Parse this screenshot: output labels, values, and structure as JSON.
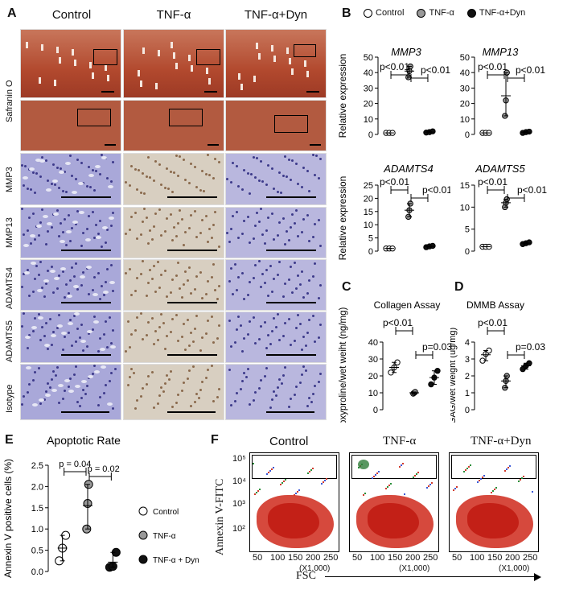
{
  "panels": {
    "A": "A",
    "B": "B",
    "C": "C",
    "D": "D",
    "E": "E",
    "F": "F"
  },
  "histology": {
    "columns": [
      "Control",
      "TNF-α",
      "TNF-α+Dyn"
    ],
    "rows": [
      "Safranin O",
      "MMP3",
      "MMP13",
      "ADAMTS4",
      "ADAMTS5",
      "Isotype"
    ]
  },
  "panelB": {
    "legend": [
      "Control",
      "TNF-α",
      "TNF-α+Dyn"
    ],
    "ylabel": "Relative expression",
    "legend_colors": [
      "#ffffff",
      "#999999",
      "#111111"
    ]
  },
  "chart_data": [
    {
      "id": "mmp3",
      "type": "scatter",
      "title": "MMP3",
      "title_style": "italic",
      "categories": [
        "Control",
        "TNF-α",
        "TNF-α+Dyn"
      ],
      "ylim": [
        0,
        50
      ],
      "yticks": [
        0,
        10,
        20,
        30,
        40,
        50
      ],
      "ylabel": "Relative expression",
      "series": [
        {
          "name": "Control",
          "values": [
            1,
            1,
            1
          ]
        },
        {
          "name": "TNF-α",
          "values": [
            37,
            41,
            44
          ]
        },
        {
          "name": "TNF-α+Dyn",
          "values": [
            1.2,
            1.5,
            2
          ]
        }
      ],
      "means": [
        1,
        41,
        1.5
      ],
      "annotations": [
        "p<0.01",
        "p<0.01"
      ]
    },
    {
      "id": "mmp13",
      "type": "scatter",
      "title": "MMP13",
      "title_style": "italic",
      "categories": [
        "Control",
        "TNF-α",
        "TNF-α+Dyn"
      ],
      "ylim": [
        0,
        50
      ],
      "yticks": [
        0,
        10,
        20,
        30,
        40,
        50
      ],
      "ylabel": "",
      "series": [
        {
          "name": "Control",
          "values": [
            1,
            1,
            1
          ]
        },
        {
          "name": "TNF-α",
          "values": [
            12,
            22,
            40
          ]
        },
        {
          "name": "TNF-α+Dyn",
          "values": [
            1,
            1.5,
            1.8
          ]
        }
      ],
      "means": [
        1,
        25,
        1.4
      ],
      "annotations": [
        "p<0.01",
        "p<0.01"
      ]
    },
    {
      "id": "adamts4",
      "type": "scatter",
      "title": "ADAMTS4",
      "title_style": "italic",
      "categories": [
        "Control",
        "TNF-α",
        "TNF-α+Dyn"
      ],
      "ylim": [
        0,
        25
      ],
      "yticks": [
        0,
        5,
        10,
        15,
        20,
        25
      ],
      "ylabel": "Relative expression",
      "series": [
        {
          "name": "Control",
          "values": [
            1,
            1,
            1
          ]
        },
        {
          "name": "TNF-α",
          "values": [
            13,
            15.5,
            18
          ]
        },
        {
          "name": "TNF-α+Dyn",
          "values": [
            1.5,
            1.8,
            2
          ]
        }
      ],
      "means": [
        1,
        15.5,
        1.8
      ],
      "annotations": [
        "p<0.01",
        "p<0.01"
      ]
    },
    {
      "id": "adamts5",
      "type": "scatter",
      "title": "ADAMTS5",
      "title_style": "italic",
      "categories": [
        "Control",
        "TNF-α",
        "TNF-α+Dyn"
      ],
      "ylim": [
        0,
        15
      ],
      "yticks": [
        0,
        5,
        10,
        15
      ],
      "ylabel": "",
      "series": [
        {
          "name": "Control",
          "values": [
            1,
            1,
            1
          ]
        },
        {
          "name": "TNF-α",
          "values": [
            10,
            11,
            11.8
          ]
        },
        {
          "name": "TNF-α+Dyn",
          "values": [
            1.6,
            1.8,
            2
          ]
        }
      ],
      "means": [
        1,
        11,
        1.8
      ],
      "annotations": [
        "p<0.01",
        "p<0.01"
      ]
    },
    {
      "id": "collagen",
      "type": "scatter",
      "title": "Collagen Assay",
      "title_style": "normal",
      "categories": [
        "Control",
        "TNF-α",
        "TNF-α+Dyn"
      ],
      "ylim": [
        0,
        40
      ],
      "yticks": [
        0,
        10,
        20,
        30,
        40
      ],
      "ylabel": "Hydroxyproline/wet weiht (ng/mg)",
      "series": [
        {
          "name": "Control",
          "values": [
            22,
            25,
            28
          ]
        },
        {
          "name": "TNF-α",
          "values": [
            9.5,
            10,
            10.5
          ]
        },
        {
          "name": "TNF-α+Dyn",
          "values": [
            15,
            19,
            23
          ]
        }
      ],
      "means": [
        25,
        10,
        19
      ],
      "annotations": [
        "p<0.01",
        "p=0.03"
      ]
    },
    {
      "id": "dmmb",
      "type": "scatter",
      "title": "DMMB Assay",
      "title_style": "normal",
      "categories": [
        "Control",
        "TNF-α",
        "TNF-α+Dyn"
      ],
      "ylim": [
        0,
        4
      ],
      "yticks": [
        0,
        1,
        2,
        3,
        4
      ],
      "ylabel": "GAG/wet weight (ug/mg)",
      "series": [
        {
          "name": "Control",
          "values": [
            2.9,
            3.3,
            3.5
          ]
        },
        {
          "name": "TNF-α",
          "values": [
            1.3,
            1.7,
            2.0
          ]
        },
        {
          "name": "TNF-α+Dyn",
          "values": [
            2.4,
            2.6,
            2.75
          ]
        }
      ],
      "means": [
        3.25,
        1.7,
        2.6
      ],
      "annotations": [
        "p<0.01",
        "p=0.03"
      ]
    },
    {
      "id": "apoptotic",
      "type": "scatter",
      "title": "Apoptotic Rate",
      "title_style": "normal",
      "categories": [
        "Control",
        "TNF-α",
        "TNF-α + Dyn"
      ],
      "ylim": [
        0,
        2.5
      ],
      "yticks": [
        0.0,
        0.5,
        1.0,
        1.5,
        2.0,
        2.5
      ],
      "ylabel": "Annexin V positive  cells (%)",
      "series": [
        {
          "name": "Control",
          "values": [
            0.25,
            0.55,
            0.85
          ]
        },
        {
          "name": "TNF-α",
          "values": [
            1.0,
            1.6,
            2.05
          ]
        },
        {
          "name": "TNF-α + Dyn",
          "values": [
            0.1,
            0.12,
            0.45
          ]
        }
      ],
      "means": [
        0.55,
        1.55,
        0.22
      ],
      "annotations": [
        "p = 0.04",
        "p = 0.02"
      ],
      "legend": [
        "Control",
        "TNF-α",
        "TNF-α + Dyn"
      ]
    }
  ],
  "flow": {
    "titles": [
      "Control",
      "TNF-α",
      "TNF-α+Dyn"
    ],
    "ylabel": "Annexin V-FITC",
    "xlabel": "FSC",
    "xticks": [
      "50",
      "100",
      "150",
      "200",
      "250"
    ],
    "xunit": "(X1,000)",
    "yticks": [
      "10⁵",
      "10⁴",
      "10³",
      "10²"
    ]
  }
}
